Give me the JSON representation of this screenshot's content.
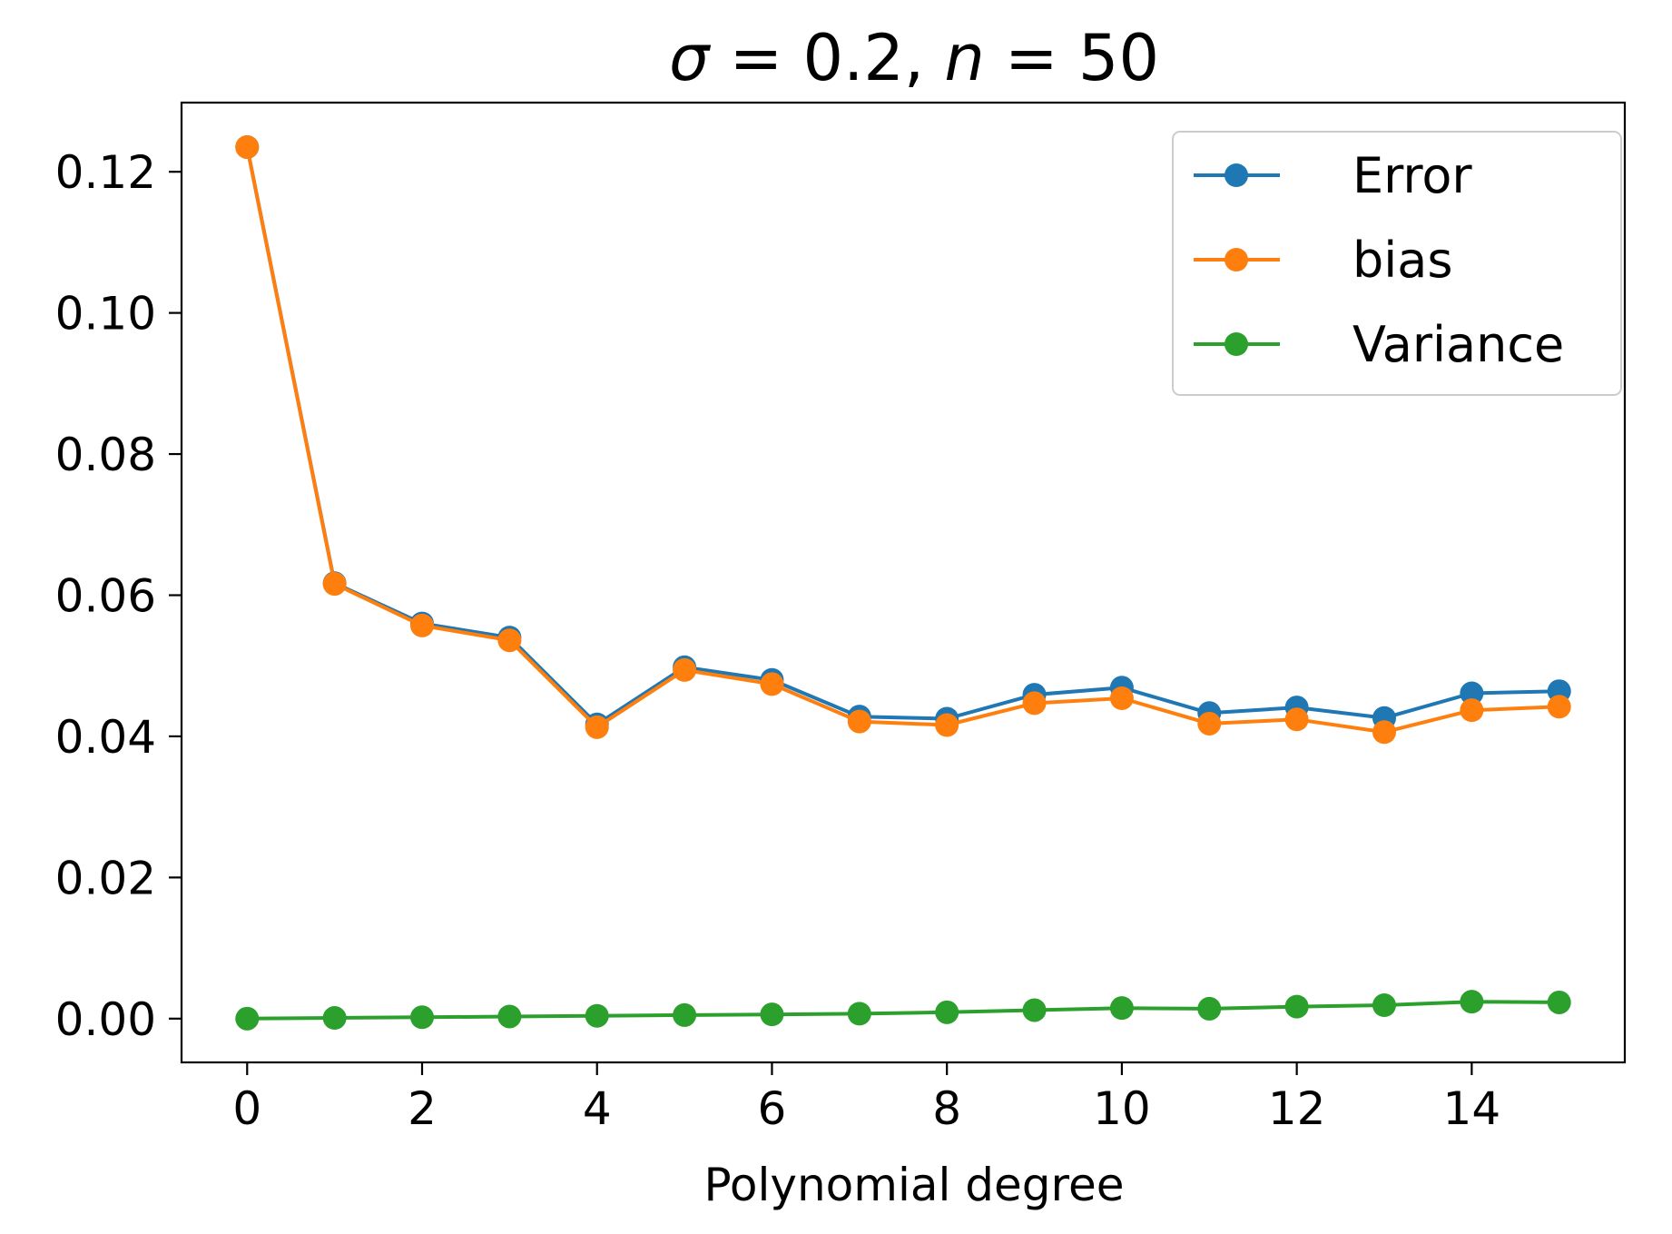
{
  "chart_data": {
    "type": "line",
    "title": "σ = 0.2, n = 50",
    "title_parts": {
      "sym1": "σ",
      "eq1": " = 0.2, ",
      "sym2": "n",
      "eq2": " = 50"
    },
    "xlabel": "Polynomial degree",
    "ylabel": "",
    "xlim": [
      -0.75,
      15.75
    ],
    "ylim": [
      -0.0062,
      0.1298
    ],
    "xticks": [
      0,
      2,
      4,
      6,
      8,
      10,
      12,
      14
    ],
    "xtick_labels": [
      "0",
      "2",
      "4",
      "6",
      "8",
      "10",
      "12",
      "14"
    ],
    "yticks": [
      0.0,
      0.02,
      0.04,
      0.06,
      0.08,
      0.1,
      0.12
    ],
    "ytick_labels": [
      "0.00",
      "0.02",
      "0.04",
      "0.06",
      "0.08",
      "0.10",
      "0.12"
    ],
    "grid": false,
    "legend_position": "upper right",
    "x": [
      0,
      1,
      2,
      3,
      4,
      5,
      6,
      7,
      8,
      9,
      10,
      11,
      12,
      13,
      14,
      15
    ],
    "series": [
      {
        "name": "Error",
        "color": "#1f77b4",
        "marker": "circle",
        "values": [
          0.1235,
          0.0617,
          0.056,
          0.054,
          0.0417,
          0.0498,
          0.048,
          0.0428,
          0.0425,
          0.0459,
          0.0469,
          0.0433,
          0.0441,
          0.0426,
          0.0461,
          0.0464
        ]
      },
      {
        "name": "bias",
        "color": "#ff7f0e",
        "marker": "circle",
        "values": [
          0.1235,
          0.0616,
          0.0557,
          0.0536,
          0.0413,
          0.0494,
          0.0474,
          0.0421,
          0.0416,
          0.0447,
          0.0454,
          0.0418,
          0.0424,
          0.0406,
          0.0437,
          0.0442
        ]
      },
      {
        "name": "Variance",
        "color": "#2ca02c",
        "marker": "circle",
        "values": [
          0.0,
          0.0001,
          0.0002,
          0.0003,
          0.0004,
          0.0005,
          0.0006,
          0.0007,
          0.0009,
          0.0012,
          0.0015,
          0.0014,
          0.0017,
          0.0019,
          0.0024,
          0.0023
        ]
      }
    ]
  }
}
